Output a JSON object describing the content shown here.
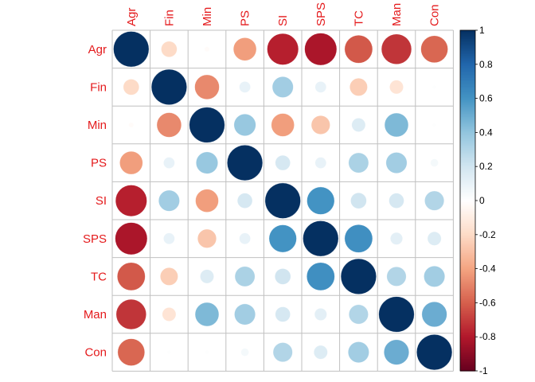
{
  "chart_data": {
    "type": "heatmap",
    "variables": [
      "Agr",
      "Fin",
      "Min",
      "PS",
      "SI",
      "SPS",
      "TC",
      "Man",
      "Con"
    ],
    "matrix": [
      [
        1.0,
        -0.2,
        -0.02,
        -0.42,
        -0.78,
        -0.82,
        -0.62,
        -0.72,
        -0.58
      ],
      [
        -0.2,
        1.0,
        -0.48,
        0.1,
        0.35,
        0.1,
        -0.25,
        -0.15,
        0.01
      ],
      [
        -0.02,
        -0.48,
        1.0,
        0.38,
        -0.42,
        -0.28,
        0.15,
        0.45,
        0.01
      ],
      [
        -0.42,
        0.1,
        0.38,
        1.0,
        0.18,
        0.1,
        0.32,
        0.35,
        0.05
      ],
      [
        -0.78,
        0.35,
        -0.42,
        0.18,
        1.0,
        0.6,
        0.2,
        0.18,
        0.3
      ],
      [
        -0.82,
        0.1,
        -0.28,
        0.1,
        0.6,
        1.0,
        0.62,
        0.12,
        0.15
      ],
      [
        -0.62,
        -0.25,
        0.15,
        0.32,
        0.2,
        0.62,
        1.0,
        0.3,
        0.35
      ],
      [
        -0.72,
        -0.15,
        0.45,
        0.35,
        0.18,
        0.12,
        0.3,
        1.0,
        0.5
      ],
      [
        -0.58,
        0.01,
        0.01,
        0.05,
        0.3,
        0.15,
        0.35,
        0.5,
        1.0
      ]
    ],
    "colorbar_ticks": [
      "1",
      "0.8",
      "0.6",
      "0.4",
      "0.2",
      "0",
      "-0.2",
      "-0.4",
      "-0.6",
      "-0.8",
      "-1"
    ],
    "colorbar_range": [
      -1,
      1
    ],
    "colors": {
      "negative_end": "#67001f",
      "positive_end": "#053061",
      "mid": "#ffffff",
      "label": "#e41a1c",
      "grid": "#c0c0c0"
    }
  }
}
